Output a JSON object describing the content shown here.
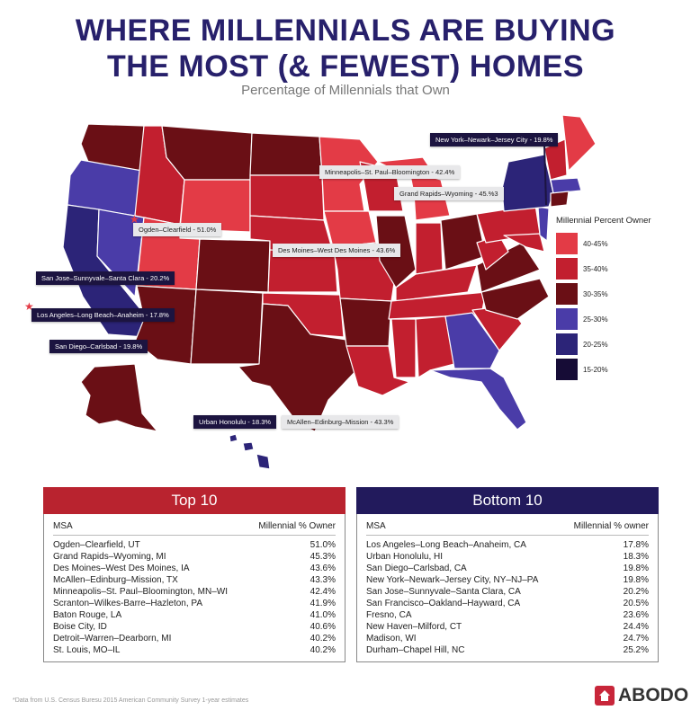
{
  "header": {
    "title_line1": "WHERE MILLENNIALS ARE BUYING",
    "title_line2": "THE MOST (& FEWEST) HOMES",
    "subtitle": "Percentage of Millennials that Own"
  },
  "colors": {
    "c40_45": "#e33b46",
    "c35_40": "#c21f2f",
    "c30_35": "#6a0f15",
    "c25_30": "#4a3ca8",
    "c20_25": "#2c2478",
    "c15_20": "#160c36",
    "title": "#27206b",
    "top_header": "#b9232f",
    "bottom_header": "#221a5c"
  },
  "legend": {
    "title": "Millennial Percent Owner",
    "items": [
      {
        "label": "40-45%",
        "color": "#e33b46"
      },
      {
        "label": "35-40%",
        "color": "#c21f2f"
      },
      {
        "label": "30-35%",
        "color": "#6a0f15"
      },
      {
        "label": "25-30%",
        "color": "#4a3ca8"
      },
      {
        "label": "20-25%",
        "color": "#2c2478"
      },
      {
        "label": "15-20%",
        "color": "#160c36"
      }
    ]
  },
  "callouts": {
    "nyc": "New York–Newark–Jersey City - 19.8%",
    "msp": "Minneapolis–St. Paul–Bloomington - 42.4%",
    "grand_rapids": "Grand Rapids–Wyoming - 45.%3",
    "ogden": "Ogden–Clearfield - 51.0%",
    "des_moines": "Des Moines–West Des Moines - 43.6%",
    "san_jose": "San Jose–Sunnyvale–Santa Clara - 20.2%",
    "la": "Los Angeles–Long Beach–Anaheim - 17.8%",
    "san_diego": "San Diego–Carlsbad - 19.8%",
    "honolulu": "Urban Honolulu - 18.3%",
    "mcallen": "McAllen–Edinburg–Mission - 43.3%"
  },
  "top10": {
    "header": "Top 10",
    "col_msa": "MSA",
    "col_value": "Millennial % Owner",
    "rows": [
      {
        "msa": "Ogden–Clearfield, UT",
        "value": "51.0%"
      },
      {
        "msa": "Grand Rapids–Wyoming, MI",
        "value": "45.3%"
      },
      {
        "msa": "Des Moines–West Des Moines, IA",
        "value": "43.6%"
      },
      {
        "msa": "McAllen–Edinburg–Mission, TX",
        "value": "43.3%"
      },
      {
        "msa": "Minneapolis–St. Paul–Bloomington, MN–WI",
        "value": "42.4%"
      },
      {
        "msa": "Scranton–Wilkes-Barre–Hazleton, PA",
        "value": "41.9%"
      },
      {
        "msa": "Baton Rouge, LA",
        "value": "41.0%"
      },
      {
        "msa": "Boise City, ID",
        "value": "40.6%"
      },
      {
        "msa": "Detroit–Warren–Dearborn, MI",
        "value": "40.2%"
      },
      {
        "msa": "St. Louis, MO–IL",
        "value": "40.2%"
      }
    ]
  },
  "bottom10": {
    "header": "Bottom 10",
    "col_msa": "MSA",
    "col_value": "Millennial % owner",
    "rows": [
      {
        "msa": "Los Angeles–Long Beach–Anaheim, CA",
        "value": "17.8%"
      },
      {
        "msa": "Urban Honolulu, HI",
        "value": "18.3%"
      },
      {
        "msa": "San Diego–Carlsbad, CA",
        "value": "19.8%"
      },
      {
        "msa": "New York–Newark–Jersey City, NY–NJ–PA",
        "value": "19.8%"
      },
      {
        "msa": "San Jose–Sunnyvale–Santa Clara, CA",
        "value": "20.2%"
      },
      {
        "msa": "San Francisco–Oakland–Hayward, CA",
        "value": "20.5%"
      },
      {
        "msa": "Fresno, CA",
        "value": "23.6%"
      },
      {
        "msa": "New Haven–Milford, CT",
        "value": "24.4%"
      },
      {
        "msa": "Madison, WI",
        "value": "24.7%"
      },
      {
        "msa": "Durham–Chapel Hill, NC",
        "value": "25.2%"
      }
    ]
  },
  "footnote": "*Data from U.S. Census Buresu 2015 American Community Survey 1-year estimates",
  "brand": "ABODO"
}
